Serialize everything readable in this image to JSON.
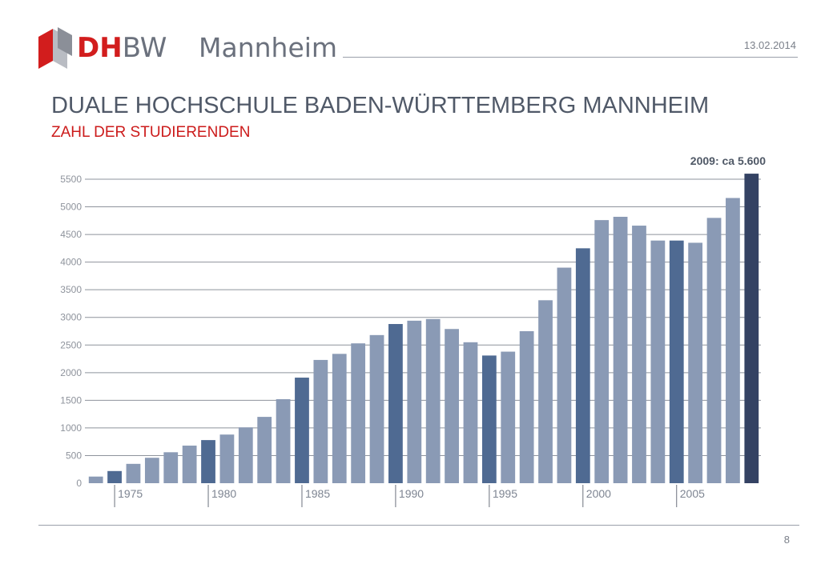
{
  "header": {
    "brand_dh": "DH",
    "brand_bw": "BW",
    "campus": "Mannheim",
    "date": "13.02.2014"
  },
  "colors": {
    "accent_red": "#d21d1d",
    "bar_light": "#8a9ab5",
    "bar_highlight": "#4f6a92",
    "bar_last": "#344263"
  },
  "title": "DUALE HOCHSCHULE BADEN-WÜRTTEMBERG MANNHEIM",
  "subtitle": "ZAHL DER STUDIERENDEN",
  "page_number": "8",
  "chart_data": {
    "type": "bar",
    "title": "",
    "annotation": "2009: ca 5.600",
    "xlabel": "",
    "ylabel": "",
    "ylim": [
      0,
      5500
    ],
    "yticks": [
      0,
      500,
      1000,
      1500,
      2000,
      2500,
      3000,
      3500,
      4000,
      4500,
      5000,
      5500
    ],
    "grid": true,
    "categories": [
      1974,
      1975,
      1976,
      1977,
      1978,
      1979,
      1980,
      1981,
      1982,
      1983,
      1984,
      1985,
      1986,
      1987,
      1988,
      1989,
      1990,
      1991,
      1992,
      1993,
      1994,
      1995,
      1996,
      1997,
      1998,
      1999,
      2000,
      2001,
      2002,
      2003,
      2004,
      2005,
      2006,
      2007,
      2008,
      2009
    ],
    "values": [
      120,
      220,
      350,
      460,
      560,
      680,
      780,
      880,
      1010,
      1200,
      1520,
      1910,
      2230,
      2340,
      2530,
      2680,
      2880,
      2940,
      2970,
      2790,
      2550,
      2310,
      2380,
      2750,
      3310,
      3900,
      4250,
      4760,
      4820,
      4660,
      4390,
      4390,
      4350,
      4800,
      5160,
      5600
    ],
    "highlighted": [
      1975,
      1980,
      1985,
      1990,
      1995,
      2000,
      2005,
      2009
    ],
    "xtick_labels": [
      "1975",
      "1980",
      "1985",
      "1990",
      "1995",
      "2000",
      "2005"
    ]
  }
}
